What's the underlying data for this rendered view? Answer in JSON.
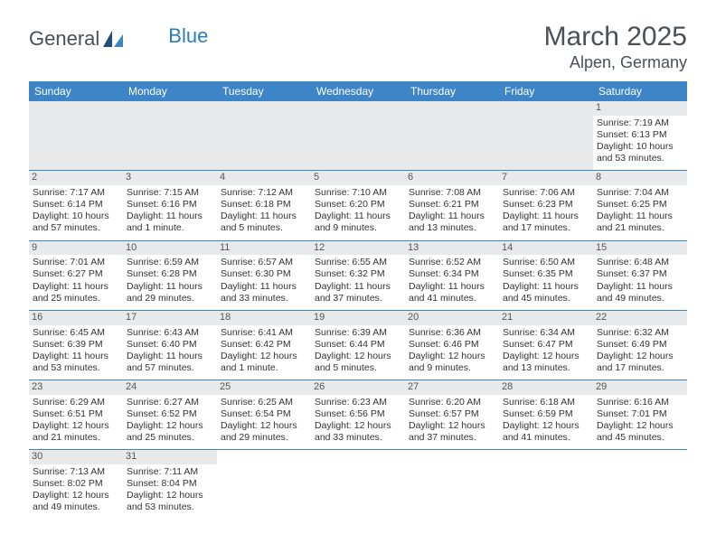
{
  "logo": {
    "part1": "General",
    "part2": "Blue"
  },
  "title": "March 2025",
  "location": "Alpen, Germany",
  "colors": {
    "header_bg": "#3d85c6",
    "header_text": "#ffffff",
    "border": "#3d85c6",
    "daynum_bg": "#e8e9ea",
    "text_dark": "#495057",
    "brand_blue": "#2b7bbf"
  },
  "weekdays": [
    "Sunday",
    "Monday",
    "Tuesday",
    "Wednesday",
    "Thursday",
    "Friday",
    "Saturday"
  ],
  "labels": {
    "sunrise": "Sunrise:",
    "sunset": "Sunset:",
    "daylight": "Daylight:"
  },
  "weeks": [
    [
      null,
      null,
      null,
      null,
      null,
      null,
      {
        "n": "1",
        "sr": "7:19 AM",
        "ss": "6:13 PM",
        "dl": "10 hours and 53 minutes."
      }
    ],
    [
      {
        "n": "2",
        "sr": "7:17 AM",
        "ss": "6:14 PM",
        "dl": "10 hours and 57 minutes."
      },
      {
        "n": "3",
        "sr": "7:15 AM",
        "ss": "6:16 PM",
        "dl": "11 hours and 1 minute."
      },
      {
        "n": "4",
        "sr": "7:12 AM",
        "ss": "6:18 PM",
        "dl": "11 hours and 5 minutes."
      },
      {
        "n": "5",
        "sr": "7:10 AM",
        "ss": "6:20 PM",
        "dl": "11 hours and 9 minutes."
      },
      {
        "n": "6",
        "sr": "7:08 AM",
        "ss": "6:21 PM",
        "dl": "11 hours and 13 minutes."
      },
      {
        "n": "7",
        "sr": "7:06 AM",
        "ss": "6:23 PM",
        "dl": "11 hours and 17 minutes."
      },
      {
        "n": "8",
        "sr": "7:04 AM",
        "ss": "6:25 PM",
        "dl": "11 hours and 21 minutes."
      }
    ],
    [
      {
        "n": "9",
        "sr": "7:01 AM",
        "ss": "6:27 PM",
        "dl": "11 hours and 25 minutes."
      },
      {
        "n": "10",
        "sr": "6:59 AM",
        "ss": "6:28 PM",
        "dl": "11 hours and 29 minutes."
      },
      {
        "n": "11",
        "sr": "6:57 AM",
        "ss": "6:30 PM",
        "dl": "11 hours and 33 minutes."
      },
      {
        "n": "12",
        "sr": "6:55 AM",
        "ss": "6:32 PM",
        "dl": "11 hours and 37 minutes."
      },
      {
        "n": "13",
        "sr": "6:52 AM",
        "ss": "6:34 PM",
        "dl": "11 hours and 41 minutes."
      },
      {
        "n": "14",
        "sr": "6:50 AM",
        "ss": "6:35 PM",
        "dl": "11 hours and 45 minutes."
      },
      {
        "n": "15",
        "sr": "6:48 AM",
        "ss": "6:37 PM",
        "dl": "11 hours and 49 minutes."
      }
    ],
    [
      {
        "n": "16",
        "sr": "6:45 AM",
        "ss": "6:39 PM",
        "dl": "11 hours and 53 minutes."
      },
      {
        "n": "17",
        "sr": "6:43 AM",
        "ss": "6:40 PM",
        "dl": "11 hours and 57 minutes."
      },
      {
        "n": "18",
        "sr": "6:41 AM",
        "ss": "6:42 PM",
        "dl": "12 hours and 1 minute."
      },
      {
        "n": "19",
        "sr": "6:39 AM",
        "ss": "6:44 PM",
        "dl": "12 hours and 5 minutes."
      },
      {
        "n": "20",
        "sr": "6:36 AM",
        "ss": "6:46 PM",
        "dl": "12 hours and 9 minutes."
      },
      {
        "n": "21",
        "sr": "6:34 AM",
        "ss": "6:47 PM",
        "dl": "12 hours and 13 minutes."
      },
      {
        "n": "22",
        "sr": "6:32 AM",
        "ss": "6:49 PM",
        "dl": "12 hours and 17 minutes."
      }
    ],
    [
      {
        "n": "23",
        "sr": "6:29 AM",
        "ss": "6:51 PM",
        "dl": "12 hours and 21 minutes."
      },
      {
        "n": "24",
        "sr": "6:27 AM",
        "ss": "6:52 PM",
        "dl": "12 hours and 25 minutes."
      },
      {
        "n": "25",
        "sr": "6:25 AM",
        "ss": "6:54 PM",
        "dl": "12 hours and 29 minutes."
      },
      {
        "n": "26",
        "sr": "6:23 AM",
        "ss": "6:56 PM",
        "dl": "12 hours and 33 minutes."
      },
      {
        "n": "27",
        "sr": "6:20 AM",
        "ss": "6:57 PM",
        "dl": "12 hours and 37 minutes."
      },
      {
        "n": "28",
        "sr": "6:18 AM",
        "ss": "6:59 PM",
        "dl": "12 hours and 41 minutes."
      },
      {
        "n": "29",
        "sr": "6:16 AM",
        "ss": "7:01 PM",
        "dl": "12 hours and 45 minutes."
      }
    ],
    [
      {
        "n": "30",
        "sr": "7:13 AM",
        "ss": "8:02 PM",
        "dl": "12 hours and 49 minutes."
      },
      {
        "n": "31",
        "sr": "7:11 AM",
        "ss": "8:04 PM",
        "dl": "12 hours and 53 minutes."
      },
      null,
      null,
      null,
      null,
      null
    ]
  ]
}
